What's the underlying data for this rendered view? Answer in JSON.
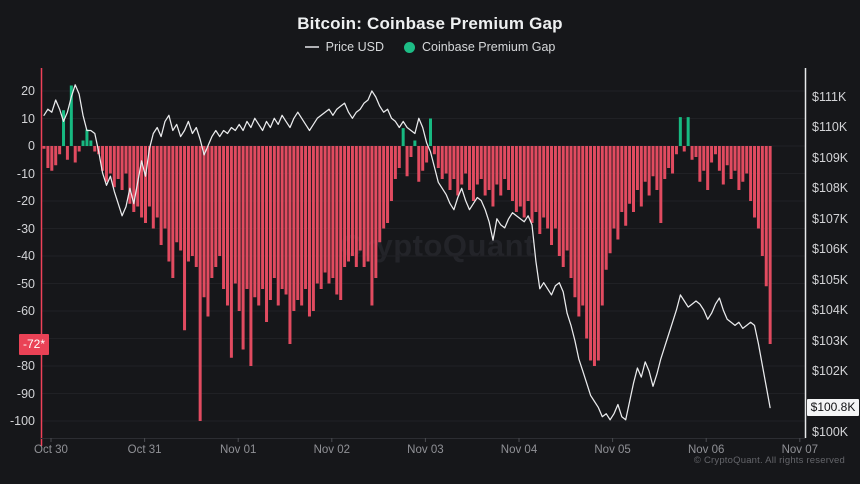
{
  "header": {
    "title": "Bitcoin: Coinbase Premium Gap"
  },
  "legend": {
    "price": {
      "label": "Price USD",
      "marker_color": "#b0b1b5"
    },
    "gap": {
      "label": "Coinbase Premium Gap",
      "marker_color": "#1dbd86"
    }
  },
  "watermark": "CryptoQuant",
  "footer": {
    "copyright": "© CryptoQuant. All rights reserved"
  },
  "colors": {
    "background": "#16171a",
    "bar_negative": "#e14b60",
    "bar_positive": "#17b981",
    "price_line": "#eaebed",
    "left_axis_line": "#ef4158",
    "right_axis_line": "#e8e9eb",
    "grid": "#202125",
    "left_badge_bg": "#ea4256",
    "right_badge_bg": "#f4f5f6"
  },
  "left_axis": {
    "visible_ticks": [
      20,
      10,
      0,
      -10,
      -20,
      -30,
      -40,
      -50,
      -60,
      -80,
      -90,
      -100
    ],
    "grid_ticks": [
      20,
      10,
      0,
      -10,
      -20,
      -30,
      -40,
      -50,
      -60,
      -70,
      -80,
      -90,
      -100
    ],
    "badge": {
      "label": "-72*",
      "value": -72
    }
  },
  "right_axis": {
    "visible_ticks": [
      {
        "value": 111,
        "label": "$111K"
      },
      {
        "value": 110,
        "label": "$110K"
      },
      {
        "value": 109,
        "label": "$109K"
      },
      {
        "value": 108,
        "label": "$108K"
      },
      {
        "value": 107,
        "label": "$107K"
      },
      {
        "value": 106,
        "label": "$106K"
      },
      {
        "value": 105,
        "label": "$105K"
      },
      {
        "value": 104,
        "label": "$104K"
      },
      {
        "value": 103,
        "label": "$103K"
      },
      {
        "value": 102,
        "label": "$102K"
      },
      {
        "value": 100,
        "label": "$100K"
      }
    ],
    "badge": {
      "label": "$100.8K",
      "value": 100.8
    }
  },
  "chart_data": {
    "type": "bar",
    "subtype": "bar+line dual-axis time series, hourly",
    "title": "Bitcoin: Coinbase Premium Gap",
    "x_labels": [
      "Oct 30",
      "Oct 31",
      "Nov 01",
      "Nov 02",
      "Nov 03",
      "Nov 04",
      "Nov 05",
      "Nov 06",
      "Nov 07"
    ],
    "left_ylabel": "Coinbase Premium Gap",
    "right_ylabel": "Price USD",
    "left_ylim": [
      -105,
      25
    ],
    "right_ylim_k_usd": [
      99.8,
      111.6
    ],
    "legend_position": "top-center",
    "grid": "horizontal-faint",
    "last_gap_value": -72,
    "last_price_k_usd": 100.8,
    "series": [
      {
        "name": "Coinbase Premium Gap",
        "type": "bar",
        "axis": "left",
        "values": [
          -1,
          -8,
          -9,
          -7,
          -3,
          13,
          -5,
          22,
          -6,
          -2,
          2,
          6,
          2,
          -2,
          -3,
          -9,
          -13,
          -10,
          -15,
          -12,
          -16,
          -10,
          -21,
          -24,
          -22,
          -26,
          -28,
          -22,
          -30,
          -26,
          -36,
          -30,
          -42,
          -48,
          -35,
          -38,
          -67,
          -42,
          -40,
          -44,
          -100,
          -55,
          -62,
          -48,
          -44,
          -40,
          -52,
          -58,
          -77,
          -50,
          -60,
          -74,
          -52,
          -80,
          -55,
          -58,
          -52,
          -64,
          -56,
          -48,
          -58,
          -52,
          -54,
          -72,
          -60,
          -56,
          -58,
          -52,
          -62,
          -60,
          -50,
          -52,
          -46,
          -50,
          -48,
          -54,
          -56,
          -44,
          -42,
          -40,
          -44,
          -38,
          -44,
          -42,
          -58,
          -48,
          -35,
          -30,
          -28,
          -20,
          -12,
          -8,
          6.5,
          -11,
          -4,
          2,
          -13,
          -9,
          -6,
          10,
          -3,
          -8,
          -12,
          -10,
          -16,
          -12,
          -18,
          -14,
          -10,
          -16,
          -20,
          -14,
          -12,
          -18,
          -16,
          -22,
          -14,
          -18,
          -12,
          -16,
          -20,
          -24,
          -22,
          -26,
          -20,
          -28,
          -24,
          -32,
          -26,
          -30,
          -36,
          -30,
          -40,
          -44,
          -38,
          -48,
          -55,
          -62,
          -58,
          -70,
          -78,
          -80,
          -78,
          -58,
          -45,
          -39,
          -30,
          -34,
          -24,
          -29,
          -21,
          -24,
          -16,
          -22,
          -13,
          -18,
          -11,
          -16,
          -28,
          -12,
          -8,
          -10,
          -3,
          10.5,
          -2,
          10.5,
          -5,
          -4,
          -13,
          -9,
          -16,
          -6,
          -3,
          -9,
          -14,
          -7,
          -12,
          -9,
          -16,
          -13,
          -10,
          -20,
          -26,
          -30,
          -40,
          -51,
          -72
        ]
      },
      {
        "name": "Price USD",
        "type": "line",
        "axis": "right",
        "unit": "K USD",
        "values": [
          110.4,
          110.6,
          110.5,
          110.9,
          110.6,
          110.2,
          110.5,
          111.0,
          111.4,
          111.1,
          110.4,
          109.9,
          109.9,
          109.8,
          109.2,
          108.5,
          108.1,
          108.4,
          107.9,
          107.5,
          107.1,
          107.4,
          108.0,
          107.5,
          108.2,
          108.9,
          108.4,
          109.3,
          109.8,
          110.0,
          109.7,
          110.2,
          110.4,
          109.9,
          110.1,
          109.7,
          109.9,
          110.2,
          109.8,
          110.0,
          109.6,
          109.1,
          109.4,
          109.7,
          109.9,
          109.7,
          109.9,
          109.8,
          110.0,
          109.9,
          110.1,
          109.9,
          110.2,
          110.0,
          110.3,
          110.1,
          109.9,
          110.2,
          110.0,
          110.3,
          110.1,
          110.4,
          110.2,
          110.0,
          110.3,
          110.5,
          110.3,
          110.1,
          109.9,
          110.1,
          110.3,
          110.4,
          110.5,
          110.6,
          110.4,
          110.6,
          110.7,
          110.8,
          110.5,
          110.3,
          110.5,
          110.6,
          110.8,
          110.9,
          111.2,
          111.0,
          110.7,
          110.5,
          110.6,
          110.3,
          110.2,
          110.0,
          110.2,
          110.0,
          109.9,
          109.8,
          110.3,
          110.0,
          109.5,
          109.2,
          108.7,
          108.2,
          108.0,
          107.8,
          107.5,
          107.3,
          107.7,
          108.0,
          107.6,
          107.3,
          107.5,
          107.7,
          107.6,
          107.3,
          106.9,
          106.3,
          107.0,
          106.8,
          106.7,
          107.0,
          107.2,
          107.1,
          107.0,
          106.9,
          107.1,
          106.8,
          105.6,
          104.7,
          104.9,
          104.7,
          104.5,
          104.8,
          104.9,
          104.6,
          103.9,
          103.5,
          103.0,
          102.4,
          102.0,
          101.6,
          101.2,
          101.0,
          100.8,
          100.5,
          100.6,
          100.4,
          100.6,
          100.9,
          100.5,
          100.4,
          101.0,
          101.6,
          102.1,
          101.8,
          102.3,
          102.0,
          101.5,
          101.9,
          102.4,
          102.8,
          103.2,
          103.6,
          104.0,
          104.5,
          104.3,
          104.1,
          104.2,
          104.3,
          104.2,
          104.0,
          103.7,
          103.9,
          104.2,
          104.4,
          104.0,
          103.7,
          103.6,
          103.5,
          103.6,
          103.4,
          103.5,
          103.6,
          103.5,
          102.9,
          102.2,
          101.5,
          100.8
        ]
      }
    ]
  }
}
